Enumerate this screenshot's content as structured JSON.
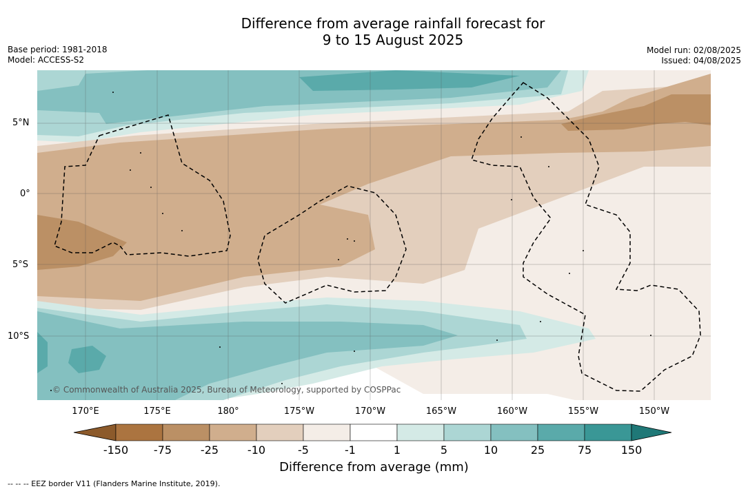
{
  "title": {
    "line1": "Difference from average rainfall forecast for",
    "line2": "9 to 15 August 2025"
  },
  "meta_left": {
    "base_period": "Base period: 1981-2018",
    "model": "Model: ACCESS-S2"
  },
  "meta_right": {
    "model_run": "Model run: 02/08/2025",
    "issued": "Issued: 04/08/2025"
  },
  "map": {
    "lat_labels": [
      "5°N",
      "0°",
      "5°S",
      "10°S"
    ],
    "lon_labels": [
      "170°E",
      "175°E",
      "180°",
      "175°W",
      "170°W",
      "165°W",
      "160°W",
      "155°W",
      "150°W"
    ],
    "attribution": "© Commonwealth of Australia 2025, Bureau of Meteorology, supported by COSPPac",
    "eez_border_style": "dashed black",
    "gridlines": true
  },
  "legend": {
    "title": "Difference from average (mm)",
    "tick_labels": [
      "-150",
      "-75",
      "-25",
      "-10",
      "-5",
      "-1",
      "1",
      "5",
      "10",
      "25",
      "75",
      "150"
    ],
    "colors": [
      "#8c5a2b",
      "#ab7440",
      "#bb9065",
      "#d0ae8d",
      "#e3cfbd",
      "#f4ede7",
      "#ffffff",
      "#d4eae6",
      "#acd6d4",
      "#84c0c0",
      "#5aaaaa",
      "#3a9796",
      "#1f7877"
    ]
  },
  "footer": "--  --  -- EEZ border V11 (Flanders Marine Institute, 2019)."
}
